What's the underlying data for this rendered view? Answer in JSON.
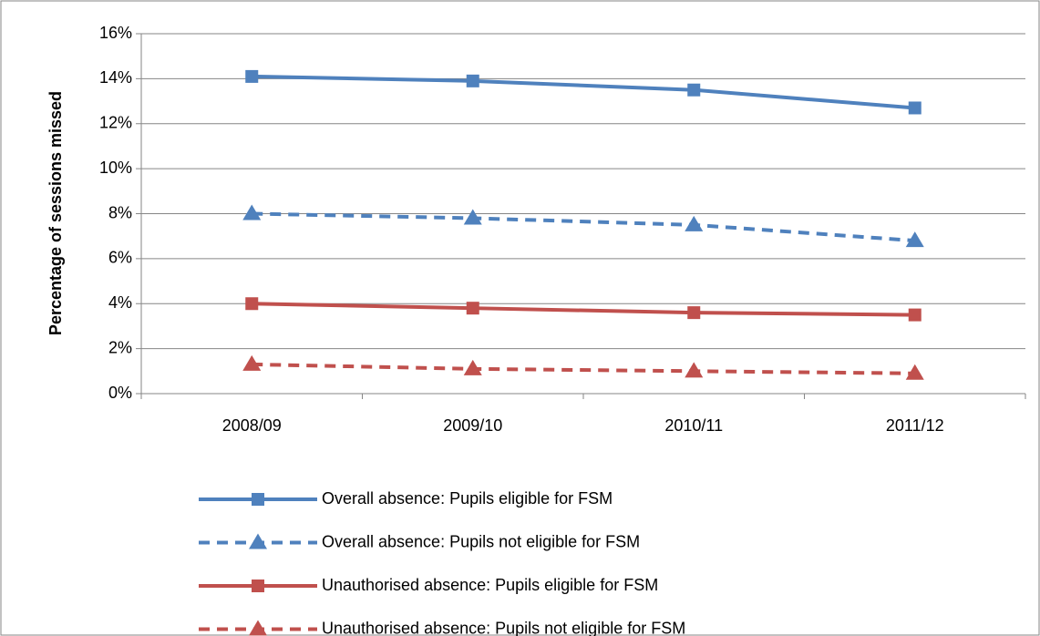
{
  "chart_data": {
    "type": "line",
    "y_label": "Percentage of sessions missed",
    "categories": [
      "2008/09",
      "2009/10",
      "2010/11",
      "2011/12"
    ],
    "series": [
      {
        "name": "Overall absence: Pupils eligible for FSM",
        "color": "#4f81bd",
        "dashed": false,
        "marker": "square",
        "values": [
          14.1,
          13.9,
          13.5,
          12.7
        ]
      },
      {
        "name": "Overall absence: Pupils not eligible for FSM",
        "color": "#4f81bd",
        "dashed": true,
        "marker": "triangle",
        "values": [
          8.0,
          7.8,
          7.5,
          6.8
        ]
      },
      {
        "name": "Unauthorised absence: Pupils eligible for FSM",
        "color": "#c0504d",
        "dashed": false,
        "marker": "square",
        "values": [
          4.0,
          3.8,
          3.6,
          3.5
        ]
      },
      {
        "name": "Unauthorised absence: Pupils not eligible for FSM",
        "color": "#c0504d",
        "dashed": true,
        "marker": "triangle",
        "values": [
          1.3,
          1.1,
          1.0,
          0.9
        ]
      }
    ],
    "ylim": [
      0,
      16
    ],
    "yticks": [
      {
        "value": 0,
        "label": "0%"
      },
      {
        "value": 2,
        "label": "2%"
      },
      {
        "value": 4,
        "label": "4%"
      },
      {
        "value": 6,
        "label": "6%"
      },
      {
        "value": 8,
        "label": "8%"
      },
      {
        "value": 10,
        "label": "10%"
      },
      {
        "value": 12,
        "label": "12%"
      },
      {
        "value": 14,
        "label": "14%"
      },
      {
        "value": 16,
        "label": "16%"
      }
    ],
    "grid": true
  }
}
